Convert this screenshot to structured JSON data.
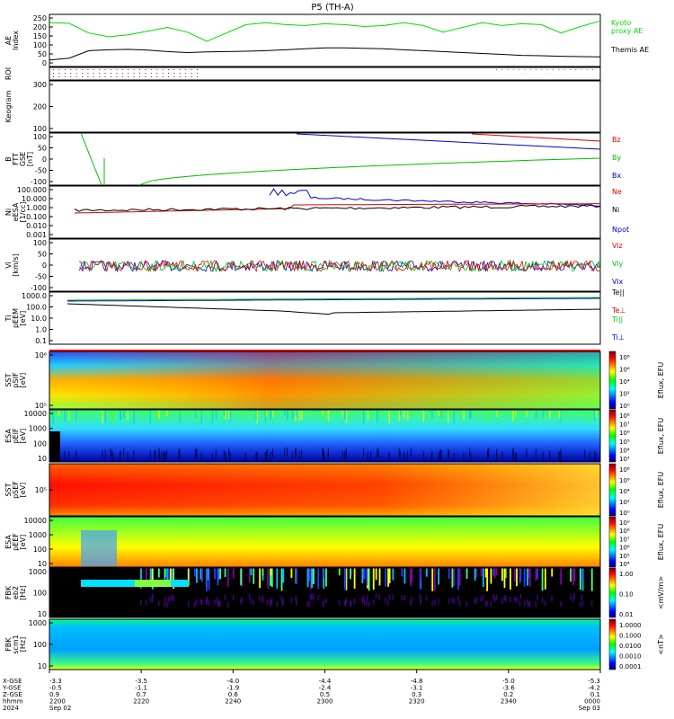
{
  "title": "P5 (TH-A)",
  "chart_data": {
    "type": "line",
    "time_range": [
      "22:00",
      "00:00"
    ],
    "bottom_axis": {
      "row_labels": [
        "X-GSE",
        "Y-GSE",
        "Z-GSE",
        "hhmm",
        "2024"
      ],
      "columns": [
        {
          "x": "-3.3",
          "y": "-0.5",
          "z": "0.9",
          "hhmm": "2200",
          "date": "Sep 02"
        },
        {
          "x": "-3.5",
          "y": "-1.1",
          "z": "0.7",
          "hhmm": "2220",
          "date": ""
        },
        {
          "x": "-4.0",
          "y": "-1.9",
          "z": "0.6",
          "hhmm": "2240",
          "date": ""
        },
        {
          "x": "-4.4",
          "y": "-2.4",
          "z": "0.5",
          "hhmm": "2300",
          "date": ""
        },
        {
          "x": "-4.8",
          "y": "-3.1",
          "z": "0.3",
          "hhmm": "2320",
          "date": ""
        },
        {
          "x": "-5.0",
          "y": "-3.6",
          "z": "0.2",
          "hhmm": "2340",
          "date": ""
        },
        {
          "x": "-5.3",
          "y": "-4.2",
          "z": "0.1",
          "hhmm": "0000",
          "date": "Sep 03"
        }
      ]
    },
    "panels": [
      {
        "id": "ae",
        "ylabel": "AE Index",
        "ticks": [
          "250",
          "200",
          "150",
          "100",
          "50",
          "0"
        ],
        "ylim": [
          -20,
          260
        ],
        "series": [
          {
            "name": "Kyoto proxy AE",
            "color": "#00dd00",
            "values": [
              215,
              212,
              160,
              140,
              150,
              170,
              190,
              165,
              115,
              160,
              205,
              215,
              205,
              200,
              210,
              205,
              195,
              200,
              215,
              200,
              165,
              190,
              215,
              200,
              210,
              205,
              160,
              195,
              225
            ]
          },
          {
            "name": "Themis AE",
            "color": "#000000",
            "values": [
              15,
              25,
              65,
              70,
              72,
              68,
              60,
              55,
              58,
              60,
              62,
              65,
              70,
              75,
              80,
              80,
              78,
              75,
              70,
              65,
              60,
              55,
              50,
              45,
              40,
              38,
              35,
              33,
              32
            ]
          }
        ]
      },
      {
        "id": "roi",
        "ylabel": "ROI"
      },
      {
        "id": "keogram",
        "ylabel": "Keogram",
        "ticks": [
          "300",
          "200",
          "100"
        ]
      },
      {
        "id": "bfield",
        "ylabel": "B FTT GSE [nT]",
        "ticks": [
          "100",
          "50",
          "0",
          "-50",
          "-100"
        ],
        "ylim": [
          -100,
          100
        ],
        "series": [
          {
            "name": "Bz",
            "color": "#dd0000"
          },
          {
            "name": "By",
            "color": "#00bb00"
          },
          {
            "name": "Bx",
            "color": "#0000cc"
          }
        ]
      },
      {
        "id": "density",
        "ylabel": "Ni eESA [1/cc]",
        "ticks": [
          "100.000",
          "10.000",
          "1.000",
          "0.100",
          "0.010",
          "0.001"
        ],
        "series": [
          {
            "name": "Ne",
            "color": "#dd0000"
          },
          {
            "name": "Ni",
            "color": "#000000"
          },
          {
            "name": "Npot",
            "color": "#0000cc"
          }
        ]
      },
      {
        "id": "velocity",
        "ylabel": "Vi [km/s]",
        "ticks": [
          "100",
          "50",
          "0",
          "-50",
          "-100"
        ],
        "series": [
          {
            "name": "Viz",
            "color": "#dd0000"
          },
          {
            "name": "Viy",
            "color": "#00bb00"
          },
          {
            "name": "Vix",
            "color": "#0000cc"
          }
        ]
      },
      {
        "id": "temperature",
        "ylabel": "Ti pEEM [eV]",
        "ticks": [
          "1000.0",
          "100.0",
          "10.0",
          "1.0",
          "0.1"
        ],
        "series": [
          {
            "name": "Te||",
            "color": "#000000"
          },
          {
            "name": "Te⊥",
            "color": "#dd0000"
          },
          {
            "name": "Ti||",
            "color": "#00bb00"
          },
          {
            "name": "Ti⊥",
            "color": "#0000cc"
          }
        ]
      },
      {
        "id": "sst_i",
        "ylabel": "SST pSIF [eV]",
        "ticks": [
          "10⁶",
          "10⁵"
        ],
        "cb_label": "Eflux, EFU",
        "cb_ticks": [
          "10⁸",
          "10⁶",
          "10⁴",
          "10²",
          "10⁰"
        ]
      },
      {
        "id": "esa_i",
        "ylabel": "ESA pEIF [eV]",
        "ticks": [
          "10000",
          "1000",
          "100",
          "10"
        ],
        "cb_label": "Eflux, EFU",
        "cb_ticks": [
          "10⁸",
          "10⁷",
          "10⁶",
          "10⁵",
          "10⁴",
          "10³"
        ]
      },
      {
        "id": "sst_e",
        "ylabel": "SST pSEF [eV]",
        "ticks": [
          "10⁵"
        ],
        "cb_label": "Eflux, EFU",
        "cb_ticks": [
          "10⁸",
          "10⁶",
          "10⁴",
          "10²",
          "10⁰"
        ]
      },
      {
        "id": "esa_e",
        "ylabel": "ESA pEEF [eV]",
        "ticks": [
          "10000",
          "1000",
          "100",
          "10"
        ],
        "cb_label": "Eflux, EFU",
        "cb_ticks": [
          "10⁹",
          "10⁸",
          "10⁷",
          "10⁶",
          "10⁵",
          "10⁴"
        ]
      },
      {
        "id": "fbk_e",
        "ylabel": "FBK eb2 [Hz]",
        "ticks": [
          "1000",
          "100",
          "10"
        ],
        "cb_label": "<mV/m>",
        "cb_ticks": [
          "1.00",
          "0.10",
          "0.01"
        ]
      },
      {
        "id": "fbk_b",
        "ylabel": "FBK scm1 [Hz]",
        "ticks": [
          "1000",
          "100",
          "10"
        ],
        "cb_label": "<nT>",
        "cb_ticks": [
          "1.0000",
          "0.1000",
          "0.0100",
          "0.0010",
          "0.0001"
        ]
      }
    ]
  }
}
